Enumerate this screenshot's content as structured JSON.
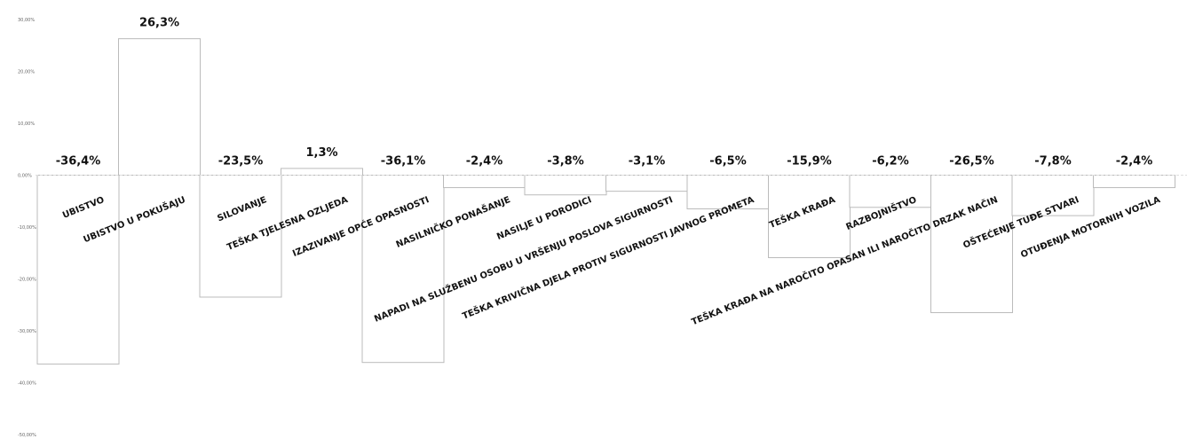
{
  "chart_data": {
    "type": "bar",
    "categories": [
      "UBISTVO",
      "UBISTVO U POKUŠAJU",
      "SILOVANJE",
      "TEŠKA TJELESNA OZLJEDA",
      "IZAZIVANJE OPĆE OPASNOSTI",
      "NASILNIČKO PONAŠANJE",
      "NASILJE U PORODICI",
      "NAPADI NA SLUŽBENU OSOBU U VRŠENJU POSLOVA SIGURNOSTI",
      "TEŠKA KRIVIČNA DJELA PROTIV SIGURNOSTI JAVNOG PROMETA",
      "TEŠKA KRAĐA",
      "RAZBOJNIŠTVO",
      "TEŠKA KRAĐA NA NAROČITO OPASAN ILI NAROČITO DRZAK NAČIN",
      "OŠTEĆENJE TUĐE STVARI",
      "OTUĐENJA MOTORNIH VOZILA"
    ],
    "values": [
      -36.4,
      26.3,
      -23.5,
      1.3,
      -36.1,
      -2.4,
      -3.8,
      -3.1,
      -6.5,
      -15.9,
      -6.2,
      -26.5,
      -7.8,
      -2.4
    ],
    "data_labels": [
      "-36,4%",
      "26,3%",
      "-23,5%",
      "1,3%",
      "-36,1%",
      "-2,4%",
      "-3,8%",
      "-3,1%",
      "-6,5%",
      "-15,9%",
      "-6,2%",
      "-26,5%",
      "-7,8%",
      "-2,4%"
    ],
    "yticks": [
      "30,00%",
      "20,00%",
      "10,00%",
      "0,00%",
      "-10,00%",
      "-20,00%",
      "-30,00%",
      "-40,00%",
      "-50,00%"
    ],
    "ylim": [
      -50,
      30
    ],
    "grid": false,
    "legend": "none",
    "colors": {
      "bar_outline": "#bbbbbb",
      "highlight_label": "#e8336e",
      "text": "#111111",
      "tick": "#666666"
    }
  }
}
